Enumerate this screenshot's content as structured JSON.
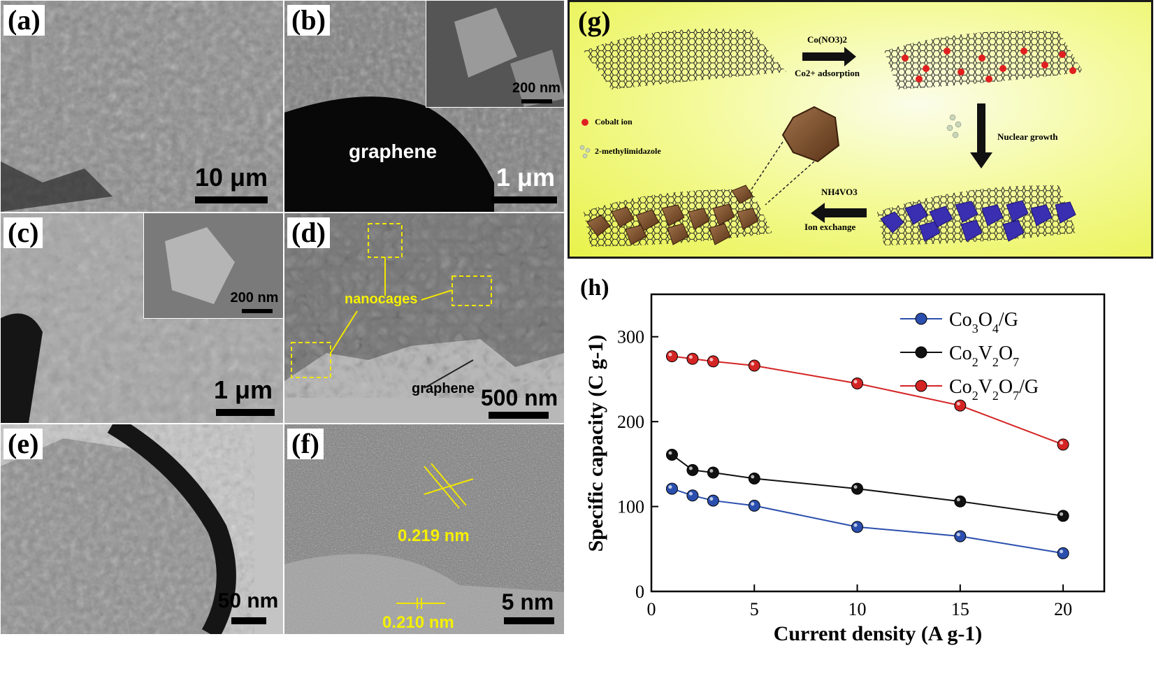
{
  "panels": {
    "a": {
      "label": "(a)",
      "scale": "10 μm"
    },
    "b": {
      "label": "(b)",
      "inset_scale": "200 nm",
      "annotation": "graphene",
      "scale": "1 μm"
    },
    "c": {
      "label": "(c)",
      "inset_scale": "200 nm",
      "scale": "1 μm"
    },
    "d": {
      "label": "(d)",
      "annotation_nanocages": "nanocages",
      "annotation_graphene": "graphene",
      "scale": "500 nm"
    },
    "e": {
      "label": "(e)",
      "scale": "50 nm"
    },
    "f": {
      "label": "(f)",
      "spacing1": "0.219 nm",
      "spacing2": "0.210 nm",
      "scale": "5 nm"
    }
  },
  "scheme": {
    "label": "(g)",
    "step1_reagent": "Co(NO3)2",
    "step1_desc": "Co2+ adsorption",
    "step2_desc": "Nuclear growth",
    "step3_reagent": "NH4VO3",
    "step3_desc": "Ion exchange",
    "legend_cobalt": "Cobalt ion",
    "legend_mim": "2-methylimidazole"
  },
  "chart_data": {
    "label": "(h)",
    "type": "line",
    "xlabel": "Current density (A g-1)",
    "ylabel": "Specific capacity (C g-1)",
    "xlim": [
      0,
      22
    ],
    "ylim": [
      0,
      350
    ],
    "xticks": [
      "0",
      "5",
      "10",
      "15",
      "20"
    ],
    "yticks": [
      "0",
      "100",
      "200",
      "300"
    ],
    "x": [
      1,
      2,
      3,
      5,
      10,
      15,
      20
    ],
    "legend_position": "top-right",
    "series": [
      {
        "name": "Co3O4/G",
        "color": "#2b4fae",
        "values": [
          121,
          113,
          107,
          101,
          76,
          65,
          45
        ]
      },
      {
        "name": "Co2V2O7",
        "color": "#111111",
        "values": [
          161,
          143,
          140,
          133,
          121,
          106,
          89
        ]
      },
      {
        "name": "Co2V2O7/G",
        "color": "#d42424",
        "values": [
          277,
          274,
          271,
          266,
          245,
          219,
          173
        ]
      }
    ]
  }
}
